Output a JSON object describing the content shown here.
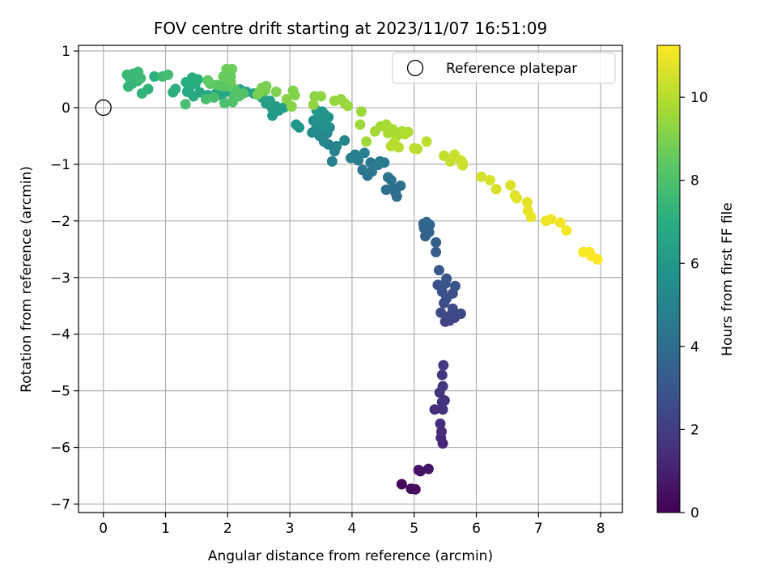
{
  "chart_data": {
    "type": "scatter",
    "title": "FOV centre drift starting at 2023/11/07 16:51:09",
    "xlabel": "Angular distance from reference (arcmin)",
    "ylabel": "Rotation from reference (arcmin)",
    "xlim": [
      -0.4,
      8.35
    ],
    "ylim": [
      -7.15,
      1.1
    ],
    "xticks": [
      0,
      1,
      2,
      3,
      4,
      5,
      6,
      7,
      8
    ],
    "yticks": [
      1,
      0,
      -1,
      -2,
      -3,
      -4,
      -5,
      -6,
      -7
    ],
    "xtick_labels": [
      "0",
      "1",
      "2",
      "3",
      "4",
      "5",
      "6",
      "7",
      "8"
    ],
    "ytick_labels": [
      "1",
      "0",
      "−1",
      "−2",
      "−3",
      "−4",
      "−5",
      "−6",
      "−7"
    ],
    "grid": true,
    "legend": {
      "placement": "top-right",
      "entries": [
        "Reference platepar"
      ]
    },
    "colorbar": {
      "label": "Hours from first FF file",
      "range": [
        0,
        11.25
      ],
      "ticks": [
        0,
        2,
        4,
        6,
        8,
        10
      ],
      "tick_labels": [
        "0",
        "2",
        "4",
        "6",
        "8",
        "10"
      ],
      "colormap": "viridis"
    },
    "reference_point": {
      "name": "Reference platepar",
      "x": 0,
      "y": 0
    },
    "series": [
      {
        "points": [
          [
            4.8,
            -6.65,
            0.2
          ],
          [
            4.95,
            -6.73,
            0.3
          ],
          [
            5.02,
            -6.74,
            0.4
          ],
          [
            5.1,
            -6.42,
            0.5
          ],
          [
            5.07,
            -6.4,
            0.6
          ],
          [
            5.23,
            -6.38,
            0.7
          ],
          [
            5.46,
            -5.93,
            1.2
          ],
          [
            5.43,
            -5.83,
            1.3
          ],
          [
            5.44,
            -5.72,
            1.35
          ],
          [
            5.42,
            -5.58,
            1.45
          ],
          [
            5.33,
            -5.33,
            1.5
          ],
          [
            5.46,
            -5.33,
            1.55
          ],
          [
            5.45,
            -5.2,
            1.6
          ],
          [
            5.49,
            -5.17,
            1.65
          ],
          [
            5.41,
            -5.03,
            1.7
          ],
          [
            5.46,
            -4.92,
            1.75
          ],
          [
            5.45,
            -4.72,
            1.8
          ],
          [
            5.47,
            -4.55,
            1.9
          ],
          [
            5.5,
            -3.78,
            2.2
          ],
          [
            5.57,
            -3.76,
            2.3
          ],
          [
            5.65,
            -3.71,
            2.35
          ],
          [
            5.58,
            -3.67,
            2.4
          ],
          [
            5.75,
            -3.64,
            2.45
          ],
          [
            5.43,
            -3.62,
            2.5
          ],
          [
            5.62,
            -3.55,
            2.55
          ],
          [
            5.48,
            -3.45,
            2.6
          ],
          [
            5.52,
            -3.37,
            2.7
          ],
          [
            5.62,
            -3.28,
            2.75
          ],
          [
            5.45,
            -3.25,
            2.8
          ],
          [
            5.66,
            -3.15,
            2.85
          ],
          [
            5.38,
            -3.13,
            2.9
          ],
          [
            5.5,
            -3.11,
            2.95
          ],
          [
            5.52,
            -3.02,
            3.0
          ],
          [
            5.4,
            -2.87,
            3.1
          ],
          [
            5.35,
            -2.55,
            3.3
          ],
          [
            5.35,
            -2.38,
            3.4
          ],
          [
            5.18,
            -2.27,
            3.5
          ],
          [
            5.24,
            -2.2,
            3.55
          ],
          [
            5.16,
            -2.13,
            3.6
          ],
          [
            5.25,
            -2.07,
            3.65
          ],
          [
            5.15,
            -2.05,
            3.7
          ],
          [
            5.2,
            -2.02,
            3.75
          ],
          [
            4.72,
            -1.57,
            3.95
          ],
          [
            4.7,
            -1.5,
            4.0
          ],
          [
            4.55,
            -1.45,
            4.05
          ],
          [
            4.65,
            -1.42,
            4.1
          ],
          [
            4.78,
            -1.38,
            4.15
          ],
          [
            4.63,
            -1.28,
            4.2
          ],
          [
            4.58,
            -1.23,
            4.25
          ],
          [
            4.25,
            -1.2,
            4.3
          ],
          [
            4.32,
            -1.13,
            4.35
          ],
          [
            4.17,
            -1.1,
            4.4
          ],
          [
            4.35,
            -1.03,
            4.45
          ],
          [
            4.3,
            -0.97,
            4.5
          ],
          [
            4.45,
            -0.95,
            4.55
          ],
          [
            4.42,
            -1.01,
            4.6
          ],
          [
            4.52,
            -0.97,
            4.65
          ],
          [
            4.1,
            -0.93,
            4.7
          ],
          [
            3.98,
            -0.89,
            4.75
          ],
          [
            4.05,
            -0.83,
            4.8
          ],
          [
            4.2,
            -0.8,
            4.85
          ],
          [
            3.68,
            -0.95,
            4.9
          ],
          [
            3.72,
            -0.77,
            4.95
          ],
          [
            3.62,
            -0.65,
            5.0
          ],
          [
            3.75,
            -0.68,
            5.05
          ],
          [
            3.55,
            -0.6,
            5.1
          ],
          [
            3.88,
            -0.58,
            5.15
          ],
          [
            3.48,
            -0.5,
            5.2
          ],
          [
            3.6,
            -0.45,
            5.25
          ],
          [
            3.36,
            -0.44,
            5.3
          ],
          [
            3.42,
            -0.38,
            5.35
          ],
          [
            3.52,
            -0.35,
            5.4
          ],
          [
            3.64,
            -0.35,
            5.45
          ],
          [
            3.45,
            -0.3,
            5.5
          ],
          [
            3.55,
            -0.3,
            5.55
          ],
          [
            3.38,
            -0.23,
            5.6
          ],
          [
            3.44,
            -0.2,
            5.65
          ],
          [
            3.62,
            -0.17,
            5.7
          ],
          [
            3.56,
            -0.12,
            5.75
          ],
          [
            3.46,
            -0.15,
            5.75
          ],
          [
            3.52,
            -0.07,
            5.8
          ],
          [
            3.15,
            -0.35,
            5.85
          ],
          [
            3.1,
            -0.3,
            5.9
          ],
          [
            3.43,
            -0.05,
            5.95
          ],
          [
            2.72,
            -0.14,
            6.0
          ],
          [
            2.82,
            -0.05,
            6.05
          ],
          [
            2.72,
            -0.02,
            6.1
          ],
          [
            2.9,
            0.0,
            6.15
          ],
          [
            2.78,
            0.02,
            6.2
          ],
          [
            2.62,
            0.07,
            6.25
          ],
          [
            2.68,
            0.12,
            6.3
          ],
          [
            2.55,
            0.18,
            6.35
          ],
          [
            2.42,
            0.25,
            6.4
          ],
          [
            2.3,
            0.28,
            6.45
          ],
          [
            2.2,
            0.32,
            6.5
          ],
          [
            2.0,
            0.29,
            6.55
          ],
          [
            1.9,
            0.22,
            6.6
          ],
          [
            1.82,
            0.26,
            6.65
          ],
          [
            1.68,
            0.22,
            6.7
          ],
          [
            1.55,
            0.27,
            6.75
          ],
          [
            1.45,
            0.2,
            6.8
          ],
          [
            1.35,
            0.28,
            6.85
          ],
          [
            1.38,
            0.35,
            6.9
          ],
          [
            1.48,
            0.42,
            6.95
          ],
          [
            1.33,
            0.45,
            7.0
          ],
          [
            1.43,
            0.53,
            7.05
          ],
          [
            1.52,
            0.5,
            7.1
          ],
          [
            1.12,
            0.27,
            7.1
          ],
          [
            1.16,
            0.33,
            7.15
          ],
          [
            0.82,
            0.55,
            7.2
          ],
          [
            0.72,
            0.33,
            7.25
          ],
          [
            0.62,
            0.25,
            7.3
          ],
          [
            0.4,
            0.37,
            7.35
          ],
          [
            0.46,
            0.42,
            7.4
          ],
          [
            0.55,
            0.47,
            7.45
          ],
          [
            0.42,
            0.53,
            7.5
          ],
          [
            0.38,
            0.58,
            7.55
          ],
          [
            0.48,
            0.6,
            7.55
          ],
          [
            0.56,
            0.63,
            7.6
          ],
          [
            0.6,
            0.52,
            7.65
          ],
          [
            0.95,
            0.55,
            7.7
          ],
          [
            1.04,
            0.58,
            7.75
          ],
          [
            1.32,
            0.06,
            7.8
          ],
          [
            1.65,
            0.15,
            7.85
          ],
          [
            1.78,
            0.18,
            7.9
          ],
          [
            1.95,
            0.08,
            7.95
          ],
          [
            2.08,
            0.1,
            8.0
          ],
          [
            2.1,
            0.18,
            8.05
          ],
          [
            2.18,
            0.2,
            8.1
          ],
          [
            2.25,
            0.25,
            8.15
          ],
          [
            2.12,
            0.32,
            8.2
          ],
          [
            2.02,
            0.37,
            8.25
          ],
          [
            1.92,
            0.38,
            8.3
          ],
          [
            1.83,
            0.4,
            8.35
          ],
          [
            1.72,
            0.42,
            8.4
          ],
          [
            1.68,
            0.48,
            8.45
          ],
          [
            2.02,
            0.5,
            8.5
          ],
          [
            2.05,
            0.55,
            8.55
          ],
          [
            2.05,
            0.45,
            8.6
          ],
          [
            1.93,
            0.55,
            8.6
          ],
          [
            1.98,
            0.68,
            8.65
          ],
          [
            2.07,
            0.68,
            8.7
          ],
          [
            2.6,
            0.3,
            8.75
          ],
          [
            2.48,
            0.23,
            8.8
          ],
          [
            2.55,
            0.35,
            8.85
          ],
          [
            2.62,
            0.38,
            8.9
          ],
          [
            2.52,
            0.28,
            8.95
          ],
          [
            2.78,
            0.28,
            9.0
          ],
          [
            3.05,
            0.3,
            9.05
          ],
          [
            3.08,
            0.22,
            9.1
          ],
          [
            2.95,
            0.15,
            9.15
          ],
          [
            3.03,
            0.02,
            9.2
          ],
          [
            3.4,
            0.2,
            9.25
          ],
          [
            3.5,
            0.2,
            9.3
          ],
          [
            3.38,
            0.05,
            9.35
          ],
          [
            3.72,
            0.12,
            9.4
          ],
          [
            3.82,
            0.15,
            9.45
          ],
          [
            3.88,
            0.08,
            9.5
          ],
          [
            3.93,
            0.03,
            9.5
          ],
          [
            4.15,
            -0.07,
            9.55
          ],
          [
            4.13,
            -0.3,
            9.6
          ],
          [
            4.23,
            -0.6,
            9.6
          ],
          [
            4.37,
            -0.42,
            9.65
          ],
          [
            4.46,
            -0.33,
            9.7
          ],
          [
            4.55,
            -0.3,
            9.75
          ],
          [
            4.65,
            -0.38,
            9.75
          ],
          [
            4.58,
            -0.45,
            9.8
          ],
          [
            4.72,
            -0.5,
            9.85
          ],
          [
            4.8,
            -0.42,
            9.85
          ],
          [
            4.9,
            -0.43,
            9.9
          ],
          [
            4.85,
            -0.47,
            9.9
          ],
          [
            4.68,
            -0.62,
            9.95
          ],
          [
            4.75,
            -0.7,
            10.0
          ],
          [
            4.63,
            -0.68,
            10.0
          ],
          [
            5.0,
            -0.72,
            10.05
          ],
          [
            5.05,
            -0.73,
            10.1
          ],
          [
            5.2,
            -0.6,
            10.15
          ],
          [
            5.48,
            -0.85,
            10.2
          ],
          [
            5.58,
            -0.95,
            10.25
          ],
          [
            5.65,
            -0.83,
            10.3
          ],
          [
            5.75,
            -0.93,
            10.35
          ],
          [
            5.78,
            -0.98,
            10.4
          ],
          [
            5.78,
            -1.02,
            10.45
          ],
          [
            6.08,
            -1.22,
            10.5
          ],
          [
            6.22,
            -1.28,
            10.55
          ],
          [
            6.32,
            -1.44,
            10.6
          ],
          [
            6.55,
            -1.37,
            10.65
          ],
          [
            6.62,
            -1.55,
            10.7
          ],
          [
            6.65,
            -1.6,
            10.75
          ],
          [
            6.82,
            -1.67,
            10.8
          ],
          [
            6.83,
            -1.82,
            10.85
          ],
          [
            6.88,
            -1.93,
            10.9
          ],
          [
            7.12,
            -2.0,
            10.95
          ],
          [
            7.2,
            -1.97,
            11.0
          ],
          [
            7.35,
            -2.03,
            11.05
          ],
          [
            7.45,
            -2.17,
            11.1
          ],
          [
            7.72,
            -2.55,
            11.15
          ],
          [
            7.82,
            -2.55,
            11.2
          ],
          [
            7.85,
            -2.62,
            11.22
          ],
          [
            7.95,
            -2.68,
            11.25
          ]
        ]
      }
    ]
  }
}
